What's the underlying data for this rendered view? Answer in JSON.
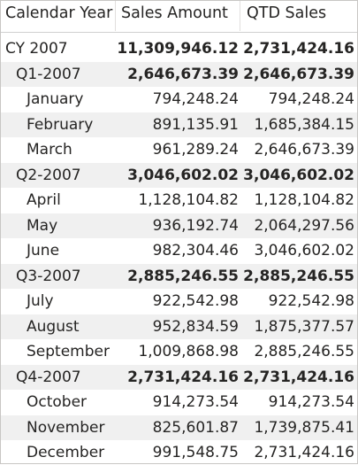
{
  "columns": {
    "col0": "Calendar Year",
    "col1": "Sales Amount",
    "col2": "QTD Sales"
  },
  "rows": [
    {
      "label": "CY 2007",
      "sales": "11,309,946.12",
      "qtd": "2,731,424.16",
      "level": 0,
      "bold": true
    },
    {
      "label": "Q1-2007",
      "sales": "2,646,673.39",
      "qtd": "2,646,673.39",
      "level": 1,
      "bold": true
    },
    {
      "label": "January",
      "sales": "794,248.24",
      "qtd": "794,248.24",
      "level": 2,
      "bold": false
    },
    {
      "label": "February",
      "sales": "891,135.91",
      "qtd": "1,685,384.15",
      "level": 2,
      "bold": false
    },
    {
      "label": "March",
      "sales": "961,289.24",
      "qtd": "2,646,673.39",
      "level": 2,
      "bold": false
    },
    {
      "label": "Q2-2007",
      "sales": "3,046,602.02",
      "qtd": "3,046,602.02",
      "level": 1,
      "bold": true
    },
    {
      "label": "April",
      "sales": "1,128,104.82",
      "qtd": "1,128,104.82",
      "level": 2,
      "bold": false
    },
    {
      "label": "May",
      "sales": "936,192.74",
      "qtd": "2,064,297.56",
      "level": 2,
      "bold": false
    },
    {
      "label": "June",
      "sales": "982,304.46",
      "qtd": "3,046,602.02",
      "level": 2,
      "bold": false
    },
    {
      "label": "Q3-2007",
      "sales": "2,885,246.55",
      "qtd": "2,885,246.55",
      "level": 1,
      "bold": true
    },
    {
      "label": "July",
      "sales": "922,542.98",
      "qtd": "922,542.98",
      "level": 2,
      "bold": false
    },
    {
      "label": "August",
      "sales": "952,834.59",
      "qtd": "1,875,377.57",
      "level": 2,
      "bold": false
    },
    {
      "label": "September",
      "sales": "1,009,868.98",
      "qtd": "2,885,246.55",
      "level": 2,
      "bold": false
    },
    {
      "label": "Q4-2007",
      "sales": "2,731,424.16",
      "qtd": "2,731,424.16",
      "level": 1,
      "bold": true
    },
    {
      "label": "October",
      "sales": "914,273.54",
      "qtd": "914,273.54",
      "level": 2,
      "bold": false
    },
    {
      "label": "November",
      "sales": "825,601.87",
      "qtd": "1,739,875.41",
      "level": 2,
      "bold": false
    },
    {
      "label": "December",
      "sales": "991,548.75",
      "qtd": "2,731,424.16",
      "level": 2,
      "bold": false
    }
  ]
}
